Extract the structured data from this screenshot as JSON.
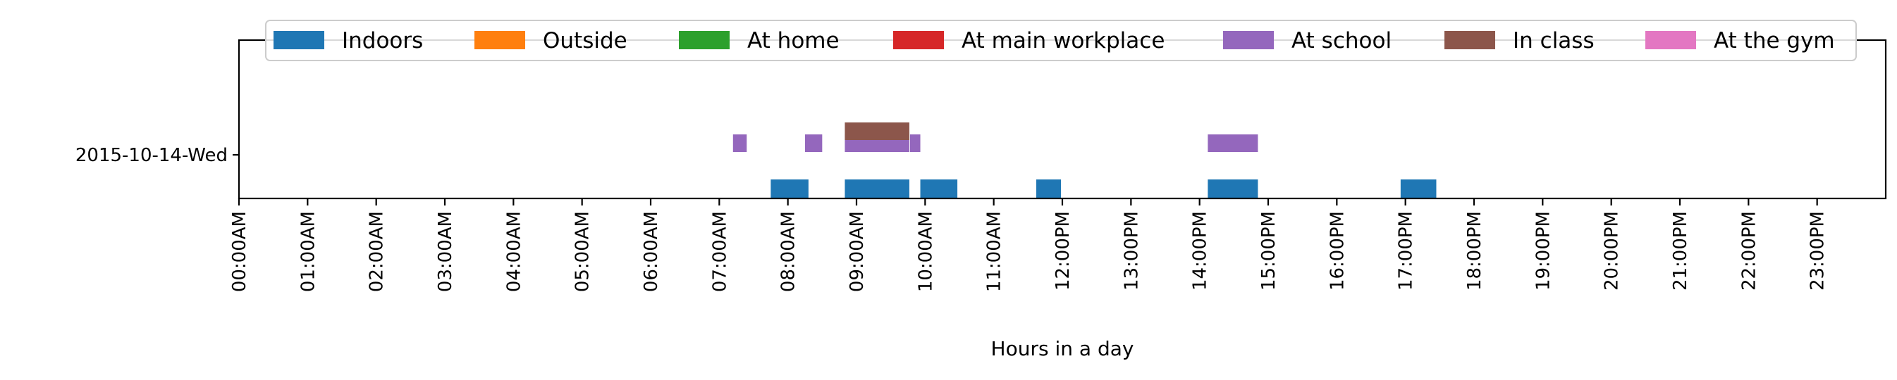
{
  "chart_data": {
    "type": "bar",
    "orientation": "horizontal-timeline",
    "xlabel": "Hours in a day",
    "xlim": [
      0,
      24
    ],
    "x_tick_labels": [
      "00:00AM",
      "01:00AM",
      "02:00AM",
      "03:00AM",
      "04:00AM",
      "05:00AM",
      "06:00AM",
      "07:00AM",
      "08:00AM",
      "09:00AM",
      "10:00AM",
      "11:00AM",
      "12:00PM",
      "13:00PM",
      "14:00PM",
      "15:00PM",
      "16:00PM",
      "17:00PM",
      "18:00PM",
      "19:00PM",
      "20:00PM",
      "21:00PM",
      "22:00PM",
      "23:00PM"
    ],
    "y_tick_labels": [
      "2015-10-14-Wed"
    ],
    "legend_position": "top-center",
    "grid": false,
    "series": [
      {
        "name": "Indoors",
        "color": "#1f77b4",
        "intervals": [
          [
            7.75,
            8.3
          ],
          [
            8.83,
            9.77
          ],
          [
            9.93,
            10.47
          ],
          [
            11.62,
            11.98
          ],
          [
            14.12,
            14.85
          ],
          [
            16.93,
            17.45
          ]
        ]
      },
      {
        "name": "Outside",
        "color": "#ff7f0e",
        "intervals": []
      },
      {
        "name": "At home",
        "color": "#2ca02c",
        "intervals": []
      },
      {
        "name": "At main workplace",
        "color": "#d62728",
        "intervals": []
      },
      {
        "name": "At school",
        "color": "#9467bd",
        "intervals": [
          [
            7.2,
            7.4
          ],
          [
            8.25,
            8.5
          ],
          [
            8.83,
            9.77
          ],
          [
            9.78,
            9.93
          ],
          [
            14.12,
            14.85
          ]
        ]
      },
      {
        "name": "In class",
        "color": "#8c564b",
        "intervals": [
          [
            8.83,
            9.77
          ]
        ]
      },
      {
        "name": "At the gym",
        "color": "#e377c2",
        "intervals": []
      }
    ]
  }
}
